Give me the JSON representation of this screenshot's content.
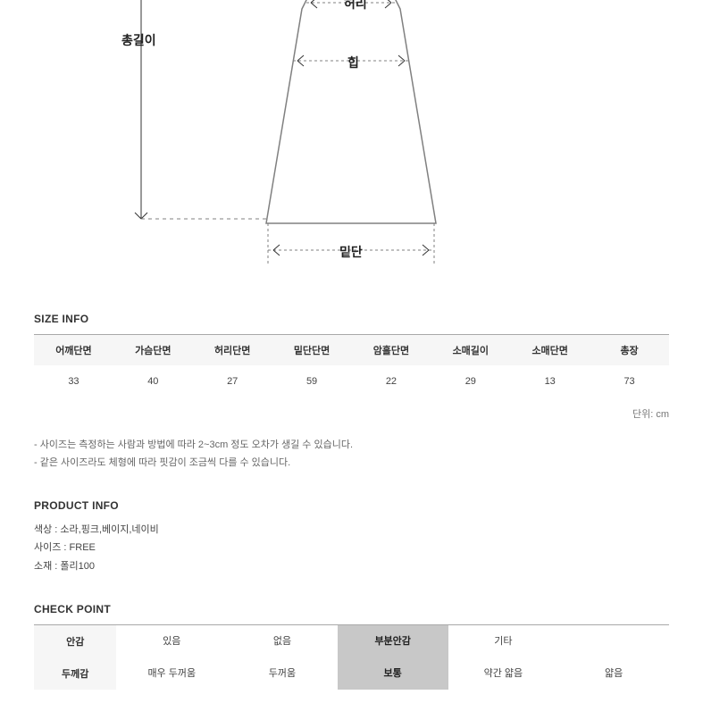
{
  "diagram": {
    "labels": {
      "total_length": "총길이",
      "waist": "허리",
      "hip": "힙",
      "hem": "밑단"
    },
    "stroke_color": "#808080",
    "dash_color": "#808080",
    "arrow_color": "#333333"
  },
  "size_info": {
    "title": "SIZE INFO",
    "columns": [
      "어깨단면",
      "가슴단면",
      "허리단면",
      "밑단단면",
      "암홀단면",
      "소매길이",
      "소매단면",
      "총장"
    ],
    "values": [
      "33",
      "40",
      "27",
      "59",
      "22",
      "29",
      "13",
      "73"
    ],
    "unit_text": "단위: cm",
    "notes": [
      "- 사이즈는 측정하는 사람과 방법에 따라 2~3cm 정도 오차가 생길 수 있습니다.",
      "- 같은 사이즈라도 체형에 따라 핏감이 조금씩 다를 수 있습니다."
    ],
    "header_bg": "#f6f6f6",
    "divider_color": "#a8a8a8"
  },
  "product_info": {
    "title": "PRODUCT INFO",
    "lines": [
      "색상 : 소라,핑크,베이지,네이비",
      "사이즈 : FREE",
      "소재 : 폴리100"
    ]
  },
  "check_point": {
    "title": "CHECK POINT",
    "rows": [
      {
        "label": "안감",
        "options": [
          "있음",
          "없음",
          "부분안감",
          "기타",
          ""
        ],
        "selected_index": 2
      },
      {
        "label": "두께감",
        "options": [
          "매우 두꺼움",
          "두꺼움",
          "보통",
          "약간 얇음",
          "얇음"
        ],
        "selected_index": 2
      }
    ],
    "selected_bg": "#c8c8c8",
    "label_bg": "#f6f6f6"
  }
}
